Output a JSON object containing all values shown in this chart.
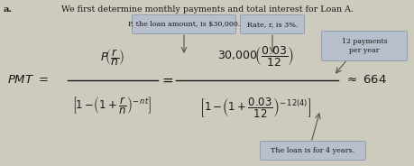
{
  "title_text": "We first determine monthly payments and total interest for Loan A.",
  "label_a": "a.",
  "box1_text": "P, the loan amount, is $30,000.",
  "box2_text": "Rate, r, is 3%.",
  "box3_text": "12 payments\nper year",
  "box4_text": "The loan is for 4 years.",
  "text_color": "#1a1a1a",
  "bg_main": "#cccbbe",
  "box_facecolor": "#b8bfcc",
  "box_edgecolor": "#8899aa"
}
